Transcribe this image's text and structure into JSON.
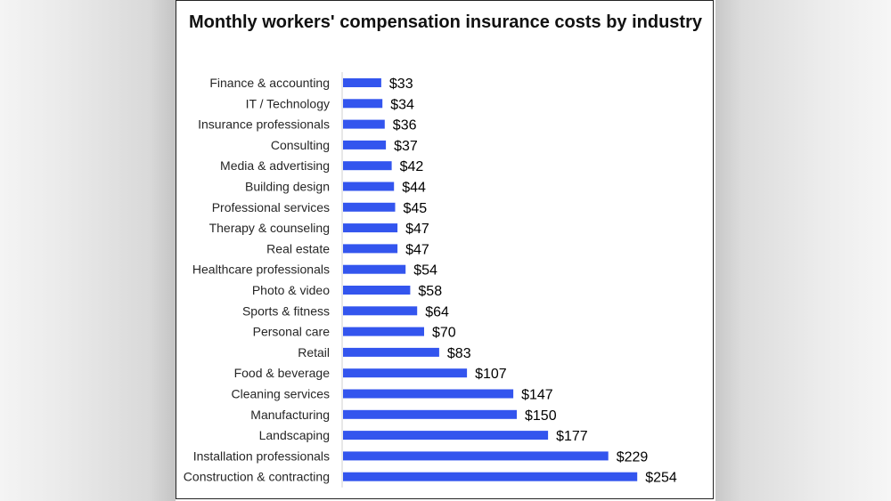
{
  "chart_data": {
    "type": "bar",
    "orientation": "horizontal",
    "title": "Monthly workers' compensation insurance costs by industry",
    "categories": [
      "Finance & accounting",
      "IT / Technology",
      "Insurance professionals",
      "Consulting",
      "Media & advertising",
      "Building design",
      "Professional services",
      "Therapy & counseling",
      "Real estate",
      "Healthcare professionals",
      "Photo & video",
      "Sports & fitness",
      "Personal care",
      "Retail",
      "Food & beverage",
      "Cleaning services",
      "Manufacturing",
      "Landscaping",
      "Installation professionals",
      "Construction & contracting"
    ],
    "values": [
      33,
      34,
      36,
      37,
      42,
      44,
      45,
      47,
      47,
      54,
      58,
      64,
      70,
      83,
      107,
      147,
      150,
      177,
      229,
      254
    ],
    "value_labels": [
      "$33",
      "$34",
      "$36",
      "$37",
      "$42",
      "$44",
      "$45",
      "$47",
      "$47",
      "$54",
      "$58",
      "$64",
      "$70",
      "$83",
      "$107",
      "$147",
      "$150",
      "$177",
      "$229",
      "$254"
    ],
    "bar_color": "#3355ee",
    "xlim": [
      0,
      254
    ],
    "grid": false,
    "legend": "none"
  }
}
